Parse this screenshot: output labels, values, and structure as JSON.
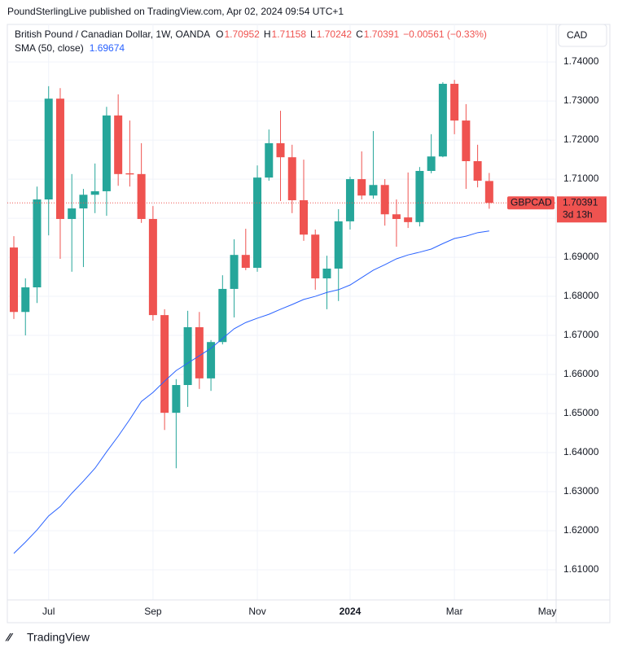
{
  "header": {
    "published": "PoundSterlingLive published on TradingView.com, Apr 02, 2024 09:54 UTC+1"
  },
  "footer": {
    "brand": "TradingView"
  },
  "chart_data": {
    "type": "candlestick",
    "title": "British Pound / Canadian Dollar, 1W, OANDA",
    "ohlc_labels": [
      "O",
      "H",
      "L",
      "C"
    ],
    "change": "−0.00561 (−0.33%)",
    "currency": "CAD",
    "symbol": "GBPCAD",
    "last_price": 1.70391,
    "countdown": "3d 13h",
    "categories": [
      null,
      null,
      null,
      "Jul",
      null,
      null,
      null,
      null,
      null,
      null,
      null,
      null,
      "Sep",
      null,
      null,
      null,
      null,
      null,
      null,
      null,
      null,
      "Nov",
      null,
      null,
      null,
      null,
      null,
      null,
      null,
      "2024",
      null,
      null,
      null,
      null,
      null,
      null,
      null,
      null,
      "Mar",
      null,
      null,
      null,
      null,
      null,
      null,
      null,
      "May"
    ],
    "series": [
      {
        "name": "GBPCAD",
        "up_color": "#26a69a",
        "down_color": "#ef5350",
        "open": [
          1.6925,
          1.676,
          1.6823,
          1.7048,
          1.7306,
          1.6998,
          1.7025,
          1.706,
          1.7069,
          1.7263,
          1.7115,
          1.7113,
          1.6998,
          1.6752,
          1.6502,
          1.6573,
          1.6721,
          1.659,
          1.6683,
          1.6819,
          1.6906,
          1.6873,
          1.7104,
          1.7192,
          1.7156,
          1.7046,
          1.6958,
          1.6846,
          1.6871,
          1.6992,
          1.71,
          1.7058,
          1.7085,
          1.701,
          1.7002,
          1.699,
          1.7121,
          1.7158,
          1.7344,
          1.725,
          1.7146,
          1.70952,
          null,
          null,
          null,
          null,
          null
        ],
        "high": [
          1.6954,
          1.6846,
          1.7081,
          1.7338,
          1.7333,
          1.7113,
          1.7075,
          1.714,
          1.7285,
          1.7317,
          1.725,
          1.7192,
          1.7031,
          1.6767,
          1.6588,
          1.6763,
          1.676,
          1.6688,
          1.6854,
          1.6946,
          1.6973,
          1.7135,
          1.7227,
          1.7275,
          1.7188,
          1.715,
          1.6971,
          1.6904,
          1.7023,
          1.7106,
          1.7171,
          1.7223,
          1.71,
          1.7048,
          1.7117,
          1.7131,
          1.7215,
          1.7348,
          1.7354,
          1.7292,
          1.7188,
          1.71158,
          null,
          null,
          null,
          null,
          null
        ],
        "low": [
          1.6742,
          1.67,
          1.6783,
          1.6956,
          1.6896,
          1.6863,
          1.6875,
          1.7013,
          1.7006,
          1.7083,
          1.7081,
          1.6988,
          1.6738,
          1.6458,
          1.636,
          1.6517,
          1.6563,
          1.6558,
          1.6677,
          1.6746,
          1.6867,
          1.6863,
          1.7096,
          1.7044,
          1.7013,
          1.6942,
          1.6817,
          1.6767,
          1.6788,
          1.6971,
          1.7048,
          1.705,
          1.6981,
          1.6927,
          1.6975,
          1.6979,
          1.7115,
          1.7156,
          1.7215,
          1.7075,
          1.7079,
          1.70242,
          null,
          null,
          null,
          null,
          null
        ],
        "close": [
          1.676,
          1.6823,
          1.7048,
          1.7306,
          1.6998,
          1.7025,
          1.706,
          1.7069,
          1.7263,
          1.7113,
          1.7112,
          1.6998,
          1.6752,
          1.6502,
          1.6573,
          1.6721,
          1.659,
          1.6683,
          1.6819,
          1.6906,
          1.6873,
          1.7104,
          1.7192,
          1.7156,
          1.7046,
          1.6958,
          1.6846,
          1.6871,
          1.6992,
          1.71,
          1.7058,
          1.7085,
          1.701,
          1.6998,
          1.699,
          1.7121,
          1.7158,
          1.7344,
          1.725,
          1.7146,
          1.7096,
          1.70391,
          null,
          null,
          null,
          null,
          null
        ]
      },
      {
        "name": "SMA (50, close)",
        "type": "line",
        "color": "#2962ff",
        "values": [
          1.6142,
          1.6171,
          1.6202,
          1.6238,
          1.6262,
          1.6296,
          1.6327,
          1.636,
          1.6402,
          1.6442,
          1.6485,
          1.6531,
          1.6554,
          1.6583,
          1.661,
          1.6629,
          1.6648,
          1.6667,
          1.6692,
          1.6717,
          1.6733,
          1.6744,
          1.6754,
          1.6767,
          1.6779,
          1.6792,
          1.68,
          1.681,
          1.6817,
          1.6829,
          1.6848,
          1.6867,
          1.6881,
          1.6896,
          1.6906,
          1.6913,
          1.6921,
          1.6935,
          1.6948,
          1.6954,
          1.6963,
          1.69674,
          null,
          null,
          null,
          null,
          null
        ]
      }
    ],
    "ylim": [
      1.6023,
      1.7496
    ],
    "yticks": [
      {
        "value": 1.61,
        "label": "1.61000"
      },
      {
        "value": 1.62,
        "label": "1.62000"
      },
      {
        "value": 1.63,
        "label": "1.63000"
      },
      {
        "value": 1.64,
        "label": "1.64000"
      },
      {
        "value": 1.65,
        "label": "1.65000"
      },
      {
        "value": 1.66,
        "label": "1.66000"
      },
      {
        "value": 1.67,
        "label": "1.67000"
      },
      {
        "value": 1.68,
        "label": "1.68000"
      },
      {
        "value": 1.69,
        "label": "1.69000"
      },
      {
        "value": 1.7,
        "label": "1.70000"
      },
      {
        "value": 1.71,
        "label": "1.71000"
      },
      {
        "value": 1.72,
        "label": "1.72000"
      },
      {
        "value": 1.73,
        "label": "1.73000"
      },
      {
        "value": 1.74,
        "label": "1.74000"
      }
    ],
    "grid": true
  }
}
